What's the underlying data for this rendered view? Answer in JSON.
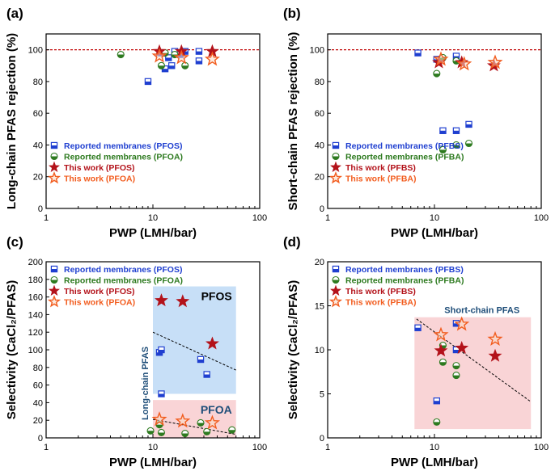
{
  "colors": {
    "blue": "#1f3fd0",
    "green": "#2d7a1f",
    "darkred": "#b3121a",
    "orange": "#f25c1e",
    "refline": "#c00000",
    "blue_region": "#c7dff7",
    "pink_region": "#f9d4d6",
    "text_pfos": "#000000",
    "text_region": "#1f4e79"
  },
  "chart_data": [
    {
      "id": "a",
      "panel_label": "(a)",
      "type": "scatter",
      "xscale": "log",
      "xlim": [
        1,
        100
      ],
      "ylim": [
        0,
        110
      ],
      "xticks": [
        "1",
        "10",
        "100"
      ],
      "yticks": [
        "0",
        "20",
        "40",
        "60",
        "80",
        "100"
      ],
      "xlabel": "PWP (LMH/bar)",
      "ylabel": "Long-chain PFAS rejection (%)",
      "reference_line_y": 100,
      "legend_position": "bottom-left",
      "series": [
        {
          "name": "Reported membranes (PFOS)",
          "marker": "square",
          "color": "blue",
          "points": [
            [
              9,
              80
            ],
            [
              12,
              98
            ],
            [
              13,
              88
            ],
            [
              14,
              95
            ],
            [
              15,
              90
            ],
            [
              16,
              99
            ],
            [
              18,
              97
            ],
            [
              20,
              99
            ],
            [
              27,
              93
            ],
            [
              27,
              99
            ]
          ]
        },
        {
          "name": "Reported membranes (PFOA)",
          "marker": "circle",
          "color": "green",
          "points": [
            [
              5,
              97
            ],
            [
              12,
              90
            ],
            [
              13,
              98
            ],
            [
              16,
              97
            ],
            [
              20,
              90
            ]
          ]
        },
        {
          "name": "This work (PFOS)",
          "marker": "star",
          "color": "darkred",
          "points": [
            [
              11.5,
              99
            ],
            [
              18.5,
              99
            ],
            [
              36,
              99
            ]
          ]
        },
        {
          "name": "This work (PFOA)",
          "marker": "star-open",
          "color": "orange",
          "points": [
            [
              11.5,
              96
            ],
            [
              18.5,
              95
            ],
            [
              36,
              94
            ]
          ]
        }
      ]
    },
    {
      "id": "b",
      "panel_label": "(b)",
      "type": "scatter",
      "xscale": "log",
      "xlim": [
        1,
        100
      ],
      "ylim": [
        0,
        110
      ],
      "xticks": [
        "1",
        "10",
        "100"
      ],
      "yticks": [
        "0",
        "20",
        "40",
        "60",
        "80",
        "100"
      ],
      "xlabel": "PWP (LMH/bar)",
      "ylabel": "Short-chain PFAS rejection (%)",
      "reference_line_y": 100,
      "legend_position": "bottom-left",
      "series": [
        {
          "name": "Reported membranes (PFBS)",
          "marker": "square",
          "color": "blue",
          "points": [
            [
              7,
              98
            ],
            [
              10.5,
              94
            ],
            [
              12,
              49
            ],
            [
              16,
              49
            ],
            [
              16,
              96
            ],
            [
              21,
              53
            ]
          ]
        },
        {
          "name": "Reported membranes (PFBA)",
          "marker": "circle",
          "color": "green",
          "points": [
            [
              10.5,
              85
            ],
            [
              12,
              37
            ],
            [
              12,
              95
            ],
            [
              16,
              40
            ],
            [
              16,
              93
            ],
            [
              21,
              41
            ]
          ]
        },
        {
          "name": "This work (PFBS)",
          "marker": "star",
          "color": "darkred",
          "points": [
            [
              11,
              92
            ],
            [
              18,
              92
            ],
            [
              36,
              90
            ]
          ]
        },
        {
          "name": "This work (PFBA)",
          "marker": "star-open",
          "color": "orange",
          "points": [
            [
              11.5,
              94
            ],
            [
              19,
              91
            ],
            [
              37,
              92
            ]
          ]
        }
      ]
    },
    {
      "id": "c",
      "panel_label": "(c)",
      "type": "scatter",
      "xscale": "log",
      "xlim": [
        1,
        100
      ],
      "ylim": [
        0,
        200
      ],
      "xticks": [
        "1",
        "10",
        "100"
      ],
      "yticks": [
        "0",
        "20",
        "40",
        "60",
        "80",
        "100",
        "120",
        "140",
        "160",
        "180",
        "200"
      ],
      "xlabel": "PWP (LMH/bar)",
      "ylabel": "Selectivity (CaCl₂/PFAS)",
      "legend_position": "top-left",
      "regions": [
        {
          "label": "PFOS",
          "x": [
            10,
            60
          ],
          "y": [
            50,
            172
          ],
          "color": "blue_region",
          "label_color": "text_pfos",
          "label_pos": "top-right"
        },
        {
          "label": "PFOA",
          "x": [
            10,
            60
          ],
          "y": [
            0,
            43
          ],
          "color": "pink_region",
          "label_color": "text_region",
          "label_pos": "top-right"
        }
      ],
      "side_label": {
        "text": "Long-chain PFAS",
        "color": "text_region"
      },
      "trend_lines": [
        {
          "x": [
            10,
            60
          ],
          "y": [
            120,
            77
          ]
        },
        {
          "x": [
            10,
            60
          ],
          "y": [
            21,
            4
          ]
        }
      ],
      "series": [
        {
          "name": "Reported membranes (PFOS)",
          "marker": "square",
          "color": "blue",
          "points": [
            [
              11.5,
              97
            ],
            [
              12,
              100
            ],
            [
              12,
              50
            ],
            [
              28,
              89
            ],
            [
              32,
              72
            ]
          ]
        },
        {
          "name": "Reported membranes (PFOA)",
          "marker": "circle",
          "color": "green",
          "points": [
            [
              9.5,
              8
            ],
            [
              11.5,
              15
            ],
            [
              12,
              6
            ],
            [
              20,
              5
            ],
            [
              28,
              17
            ],
            [
              32,
              7
            ],
            [
              55,
              9
            ]
          ]
        },
        {
          "name": "This work (PFOS)",
          "marker": "star",
          "color": "darkred",
          "points": [
            [
              12,
              156
            ],
            [
              19,
              155
            ],
            [
              36,
              107
            ]
          ]
        },
        {
          "name": "This work (PFOA)",
          "marker": "star-open",
          "color": "orange",
          "points": [
            [
              11.5,
              21
            ],
            [
              19,
              19
            ],
            [
              36,
              17
            ]
          ]
        }
      ]
    },
    {
      "id": "d",
      "panel_label": "(d)",
      "type": "scatter",
      "xscale": "log",
      "xlim": [
        1,
        100
      ],
      "ylim": [
        0,
        20
      ],
      "xticks": [
        "1",
        "10",
        "100"
      ],
      "yticks": [
        "0",
        "5",
        "10",
        "15",
        "20"
      ],
      "xlabel": "PWP (LMH/bar)",
      "ylabel": "Selectivity (CaCl₂/PFAS)",
      "legend_position": "top-left",
      "regions": [
        {
          "label": "Short-chain PFAS",
          "x": [
            6.5,
            80
          ],
          "y": [
            1,
            13.7
          ],
          "color": "pink_region",
          "label_color": "text_region",
          "label_pos": "above-right"
        }
      ],
      "trend_lines": [
        {
          "x": [
            6.8,
            80
          ],
          "y": [
            13.5,
            4.1
          ]
        }
      ],
      "series": [
        {
          "name": "Reported membranes (PFBS)",
          "marker": "square",
          "color": "blue",
          "points": [
            [
              7,
              12.5
            ],
            [
              10.5,
              4.2
            ],
            [
              16,
              10
            ],
            [
              16,
              13
            ]
          ]
        },
        {
          "name": "Reported membranes (PFBA)",
          "marker": "circle",
          "color": "green",
          "points": [
            [
              10.5,
              1.8
            ],
            [
              12,
              8.6
            ],
            [
              12,
              10.5
            ],
            [
              16,
              7.1
            ],
            [
              16,
              8.2
            ]
          ]
        },
        {
          "name": "This work (PFBS)",
          "marker": "star",
          "color": "darkred",
          "points": [
            [
              11.5,
              9.9
            ],
            [
              18,
              10.2
            ],
            [
              37,
              9.3
            ]
          ]
        },
        {
          "name": "This work (PFBA)",
          "marker": "star-open",
          "color": "orange",
          "points": [
            [
              11.5,
              11.7
            ],
            [
              18,
              12.9
            ],
            [
              37,
              11.2
            ]
          ]
        }
      ]
    }
  ]
}
